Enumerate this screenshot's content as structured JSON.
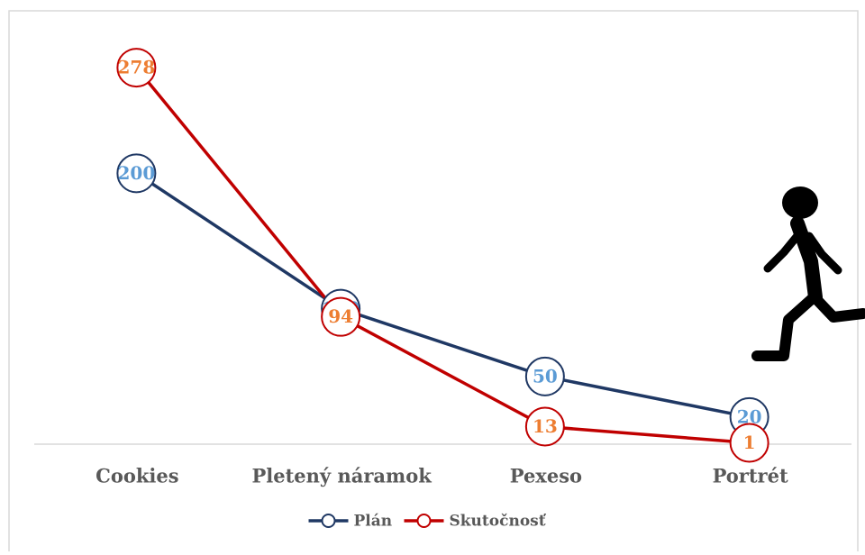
{
  "chart_data": {
    "type": "line",
    "categories": [
      "Cookies",
      "Pletený náramok",
      "Pexeso",
      "Portrét"
    ],
    "series": [
      {
        "name": "Plán",
        "color": "#1f3864",
        "label_color": "#5b9bd5",
        "values": [
          200,
          100,
          50,
          20
        ]
      },
      {
        "name": "Skutočnosť",
        "color": "#c00000",
        "label_color": "#ed7d31",
        "values": [
          278,
          94,
          13,
          1
        ]
      }
    ],
    "ylim": [
      0,
      300
    ],
    "grid": false,
    "legend": "bottom"
  }
}
